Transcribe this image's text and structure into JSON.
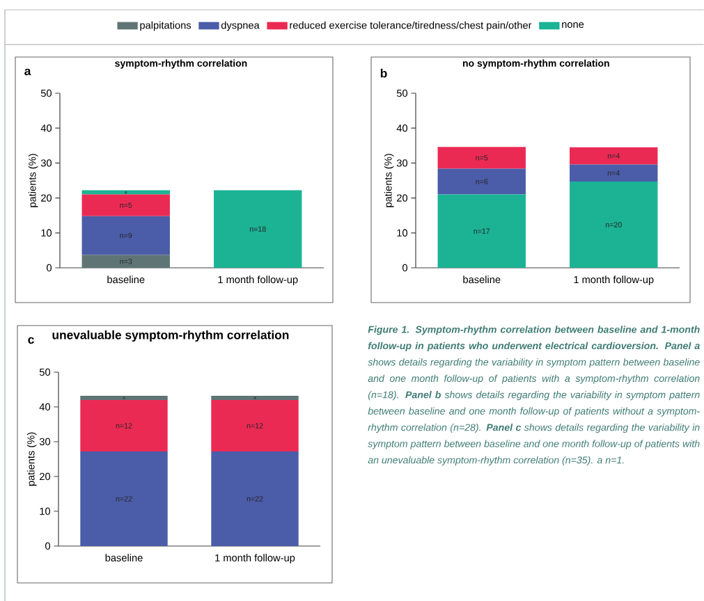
{
  "chart_data": [
    {
      "type": "bar",
      "stacked": true,
      "title": "symptom-rhythm correlation",
      "annotations": [
        "a",
        "n=3",
        "n=9",
        "n=5",
        "a",
        "n=18"
      ],
      "ylabel": "patients (%)",
      "categories": [
        "baseline",
        "1 month follow-up"
      ],
      "ylim": [
        0,
        50
      ],
      "yticks": [
        0,
        10,
        20,
        30,
        40,
        50
      ],
      "legend": "top",
      "series": [
        {
          "name": "palpitations",
          "color": "#5f7575",
          "values": [
            3.7,
            0
          ]
        },
        {
          "name": "dyspnea",
          "color": "#4b5ca8",
          "values": [
            11.1,
            0
          ]
        },
        {
          "name": "reduced exercise tolerance/tiredness/chest pain/other",
          "color": "#eb2a54",
          "values": [
            6.2,
            0
          ]
        },
        {
          "name": "none",
          "color": "#1bb394",
          "values": [
            1.2,
            22.2
          ]
        }
      ]
    },
    {
      "type": "bar",
      "stacked": true,
      "title": "no symptom-rhythm correlation",
      "annotations": [
        "b",
        "n=17",
        "n=20",
        "n=6",
        "n=4",
        "n=5",
        "n=4"
      ],
      "ylabel": "patients (%)",
      "categories": [
        "baseline",
        "1 month follow-up"
      ],
      "ylim": [
        0,
        50
      ],
      "yticks": [
        0,
        10,
        20,
        30,
        40,
        50
      ],
      "series": [
        {
          "color": "#1bb394",
          "values": [
            21.0,
            24.7
          ]
        },
        {
          "color": "#4b5ca8",
          "values": [
            7.4,
            4.9
          ]
        },
        {
          "color": "#eb2a54",
          "values": [
            6.2,
            4.9
          ]
        }
      ]
    },
    {
      "type": "bar",
      "stacked": true,
      "title": "unevaluable symptom-rhythm correlation",
      "annotations": [
        "c",
        "n=22",
        "n=22",
        "n=12",
        "n=12",
        "a",
        "a"
      ],
      "ylabel": "patients (%)",
      "categories": [
        "baseline",
        "1 month follow-up"
      ],
      "ylim": [
        0,
        50
      ],
      "yticks": [
        0,
        10,
        20,
        30,
        40,
        50
      ],
      "series": [
        {
          "color": "#4b5ca8",
          "values": [
            27.2,
            27.2
          ]
        },
        {
          "color": "#eb2a54",
          "values": [
            14.8,
            14.8
          ]
        },
        {
          "color": "#5f7575",
          "values": [
            1.2,
            1.2
          ]
        }
      ]
    },
    {
      "type": "other",
      "annotations": [
        "**Figure 1. Symptom-rhythm correlation between baseline and 1-month follow-up in patients who underwent electrical cardioversion. Panel a** shows details regarding the variability in symptom pattern between baseline and one month follow-up of patients with a symptom-rhythm correlation (n=18). **Panel b** shows details regarding the variability in symptom pattern between baseline and one month follow-up of patients without a symptom-rhythm correlation (n=28). **Panel c** shows details regarding the variability in symptom pattern between baseline and one month follow-up of patients with an unevaluable symptom-rhythm correlation (n=35). a n=1."
      ]
    }
  ]
}
